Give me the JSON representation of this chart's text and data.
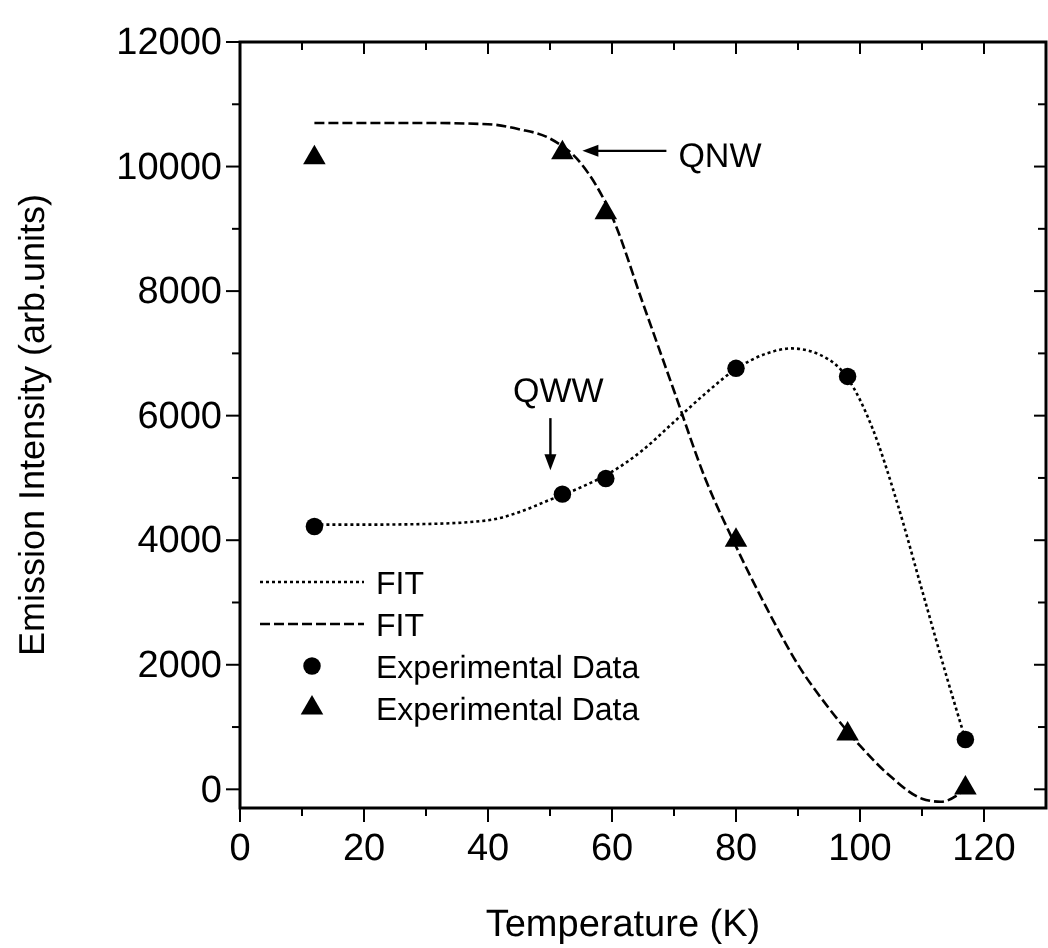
{
  "chart_data": {
    "type": "line",
    "xlabel": "Temperature (K)",
    "ylabel": "Emission Intensity (arb.units)",
    "xlim": [
      0,
      130
    ],
    "ylim": [
      -300,
      12000
    ],
    "xticks": [
      0,
      {
        "value": 10,
        "label": null
      },
      20,
      {
        "value": 30,
        "label": null
      },
      40,
      {
        "value": 50,
        "label": null
      },
      60,
      {
        "value": 70,
        "label": null
      },
      80,
      {
        "value": 90,
        "label": null
      },
      100,
      {
        "value": 110,
        "label": null
      },
      120
    ],
    "yticks": [
      0,
      {
        "value": 1000,
        "label": null
      },
      2000,
      {
        "value": 3000,
        "label": null
      },
      4000,
      {
        "value": 5000,
        "label": null
      },
      6000,
      {
        "value": 7000,
        "label": null
      },
      8000,
      {
        "value": 9000,
        "label": null
      },
      10000,
      {
        "value": 11000,
        "label": null
      },
      12000
    ],
    "grid": false,
    "legend": "bottom left",
    "series": [
      {
        "name": "FIT",
        "type": "line",
        "line_style": "dotted",
        "marker": "none",
        "color": "#000000",
        "x": [
          12,
          20,
          30,
          40,
          45,
          50,
          55,
          60,
          65,
          70,
          75,
          80,
          85,
          89,
          95,
          98,
          102,
          106,
          110,
          114,
          117
        ],
        "values": [
          4250,
          4250,
          4260,
          4320,
          4450,
          4650,
          4850,
          5100,
          5450,
          5900,
          6350,
          6750,
          7000,
          7080,
          6900,
          6600,
          5800,
          4600,
          3200,
          1800,
          800
        ]
      },
      {
        "name": "FIT",
        "type": "line",
        "line_style": "dashed",
        "marker": "none",
        "color": "#000000",
        "x": [
          12,
          20,
          30,
          40,
          45,
          50,
          55,
          60,
          65,
          70,
          75,
          80,
          85,
          90,
          95,
          100,
          105,
          110,
          113,
          117
        ],
        "values": [
          10700,
          10700,
          10700,
          10680,
          10600,
          10450,
          10050,
          9200,
          7800,
          6400,
          5000,
          3900,
          2900,
          2000,
          1300,
          700,
          200,
          -150,
          -200,
          0
        ]
      },
      {
        "name": "Experimental Data",
        "type": "scatter",
        "marker": "circle",
        "color": "#000000",
        "x": [
          12,
          52,
          59,
          80,
          98,
          117
        ],
        "values": [
          4220,
          4740,
          4990,
          6760,
          6630,
          800
        ]
      },
      {
        "name": "Experimental Data",
        "type": "scatter",
        "marker": "triangle",
        "color": "#000000",
        "x": [
          12,
          52,
          59,
          80,
          98,
          117
        ],
        "values": [
          10140,
          10220,
          9260,
          4000,
          890,
          20
        ]
      }
    ],
    "annotations": [
      "QNW",
      "QWW"
    ]
  }
}
